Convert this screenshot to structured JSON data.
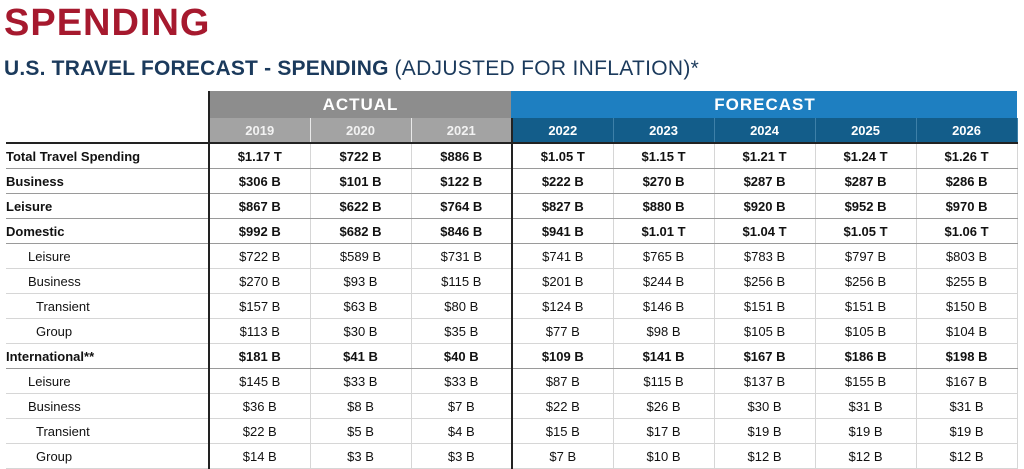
{
  "title": "SPENDING",
  "subtitle": {
    "bold": "U.S. TRAVEL FORECAST - SPENDING",
    "light": "(ADJUSTED FOR INFLATION)*"
  },
  "groups": {
    "actual": "ACTUAL",
    "forecast": "FORECAST"
  },
  "years": {
    "actual": [
      "2019",
      "2020",
      "2021"
    ],
    "forecast": [
      "2022",
      "2023",
      "2024",
      "2025",
      "2026"
    ]
  },
  "rows": [
    {
      "label": "Total Travel Spending",
      "bold": true,
      "indent": 0,
      "values": [
        "$1.17 T",
        "$722 B",
        "$886 B",
        "$1.05 T",
        "$1.15 T",
        "$1.21 T",
        "$1.24 T",
        "$1.26 T"
      ]
    },
    {
      "label": "Business",
      "bold": true,
      "indent": 0,
      "values": [
        "$306 B",
        "$101 B",
        "$122 B",
        "$222 B",
        "$270 B",
        "$287 B",
        "$287 B",
        "$286 B"
      ]
    },
    {
      "label": "Leisure",
      "bold": true,
      "indent": 0,
      "values": [
        "$867 B",
        "$622 B",
        "$764 B",
        "$827 B",
        "$880 B",
        "$920 B",
        "$952 B",
        "$970 B"
      ]
    },
    {
      "label": "Domestic",
      "bold": true,
      "indent": 0,
      "values": [
        "$992 B",
        "$682 B",
        "$846 B",
        "$941 B",
        "$1.01 T",
        "$1.04 T",
        "$1.05 T",
        "$1.06 T"
      ]
    },
    {
      "label": "Leisure",
      "bold": false,
      "indent": 1,
      "values": [
        "$722 B",
        "$589 B",
        "$731 B",
        "$741 B",
        "$765 B",
        "$783 B",
        "$797 B",
        "$803 B"
      ]
    },
    {
      "label": "Business",
      "bold": false,
      "indent": 1,
      "values": [
        "$270 B",
        "$93 B",
        "$115 B",
        "$201 B",
        "$244 B",
        "$256 B",
        "$256 B",
        "$255 B"
      ]
    },
    {
      "label": "Transient",
      "bold": false,
      "indent": 2,
      "values": [
        "$157 B",
        "$63 B",
        "$80 B",
        "$124 B",
        "$146 B",
        "$151 B",
        "$151 B",
        "$150 B"
      ]
    },
    {
      "label": "Group",
      "bold": false,
      "indent": 2,
      "values": [
        "$113 B",
        "$30 B",
        "$35 B",
        "$77 B",
        "$98 B",
        "$105 B",
        "$105 B",
        "$104 B"
      ]
    },
    {
      "label": "International**",
      "bold": true,
      "indent": 0,
      "values": [
        "$181 B",
        "$41 B",
        "$40 B",
        "$109 B",
        "$141 B",
        "$167 B",
        "$186 B",
        "$198 B"
      ]
    },
    {
      "label": "Leisure",
      "bold": false,
      "indent": 1,
      "values": [
        "$145 B",
        "$33 B",
        "$33 B",
        "$87 B",
        "$115 B",
        "$137 B",
        "$155 B",
        "$167 B"
      ]
    },
    {
      "label": "Business",
      "bold": false,
      "indent": 1,
      "values": [
        "$36 B",
        "$8 B",
        "$7 B",
        "$22 B",
        "$26 B",
        "$30 B",
        "$31 B",
        "$31 B"
      ]
    },
    {
      "label": "Transient",
      "bold": false,
      "indent": 2,
      "values": [
        "$22 B",
        "$5 B",
        "$4 B",
        "$15 B",
        "$17 B",
        "$19 B",
        "$19 B",
        "$19 B"
      ]
    },
    {
      "label": "Group",
      "bold": false,
      "indent": 2,
      "values": [
        "$14 B",
        "$3 B",
        "$3 B",
        "$7 B",
        "$10 B",
        "$12 B",
        "$12 B",
        "$12 B"
      ]
    }
  ],
  "colors": {
    "title": "#a6192e",
    "subtitle": "#1b3a5c",
    "actual_header": "#8d8d8d",
    "actual_years": "#a3a3a3",
    "forecast_header": "#1e7fc1",
    "forecast_years": "#135d8a"
  }
}
